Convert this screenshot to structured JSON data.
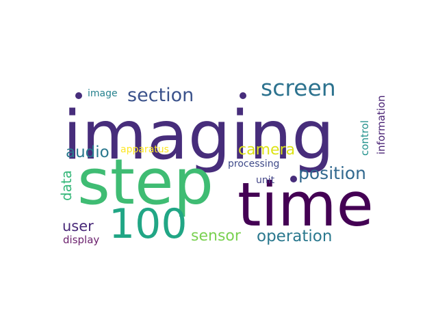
{
  "wordcloud": {
    "words": [
      {
        "text": "imaging",
        "color": "#472d7b"
      },
      {
        "text": "step",
        "color": "#3fbc73"
      },
      {
        "text": "time",
        "color": "#440154"
      },
      {
        "text": "100",
        "color": "#21a685"
      },
      {
        "text": "screen",
        "color": "#2c728e"
      },
      {
        "text": "section",
        "color": "#3b528b"
      },
      {
        "text": "position",
        "color": "#31688e"
      },
      {
        "text": "camera",
        "color": "#dde318"
      },
      {
        "text": "audio",
        "color": "#2a788e"
      },
      {
        "text": "operation",
        "color": "#2a788e"
      },
      {
        "text": "sensor",
        "color": "#7ad151"
      },
      {
        "text": "user",
        "color": "#482878"
      },
      {
        "text": "data",
        "color": "#35b779"
      },
      {
        "text": "display",
        "color": "#6a1f6c"
      },
      {
        "text": "processing",
        "color": "#3e4a89"
      },
      {
        "text": "apparatus",
        "color": "#fde725"
      },
      {
        "text": "image",
        "color": "#26828e"
      },
      {
        "text": "unit",
        "color": "#414487"
      },
      {
        "text": "control",
        "color": "#21918c"
      },
      {
        "text": "information",
        "color": "#482173"
      }
    ]
  }
}
